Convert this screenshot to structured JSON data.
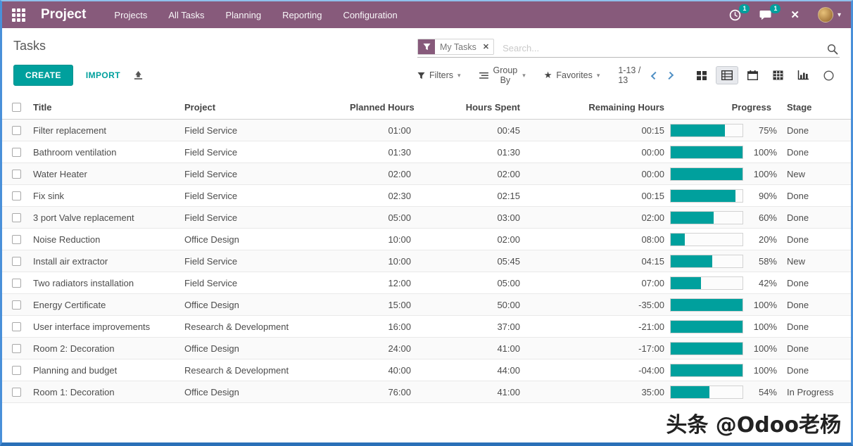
{
  "navbar": {
    "app_name": "Project",
    "menu_items": [
      "Projects",
      "All Tasks",
      "Planning",
      "Reporting",
      "Configuration"
    ],
    "activity_badge": "1",
    "message_badge": "1"
  },
  "control_panel": {
    "title": "Tasks",
    "create_label": "CREATE",
    "import_label": "IMPORT",
    "search": {
      "facet_label": "My Tasks",
      "facet_remove": "✕",
      "placeholder": "Search..."
    },
    "filters_label": "Filters",
    "group_by_label": "Group By",
    "favorites_label": "Favorites",
    "pager_text": "1-13 / 13",
    "view_switcher": [
      "kanban",
      "list",
      "calendar",
      "pivot",
      "graph",
      "activity"
    ],
    "active_view": "list"
  },
  "table": {
    "columns": {
      "title": "Title",
      "project": "Project",
      "planned": "Planned Hours",
      "spent": "Hours Spent",
      "remaining": "Remaining Hours",
      "progress": "Progress",
      "stage": "Stage"
    },
    "sort_column": "planned",
    "rows": [
      {
        "title": "Filter replacement",
        "project": "Field Service",
        "planned": "01:00",
        "spent": "00:45",
        "remaining": "00:15",
        "progress": 75,
        "progress_label": "75%",
        "stage": "Done"
      },
      {
        "title": "Bathroom ventilation",
        "project": "Field Service",
        "planned": "01:30",
        "spent": "01:30",
        "remaining": "00:00",
        "progress": 100,
        "progress_label": "100%",
        "stage": "Done"
      },
      {
        "title": "Water Heater",
        "project": "Field Service",
        "planned": "02:00",
        "spent": "02:00",
        "remaining": "00:00",
        "progress": 100,
        "progress_label": "100%",
        "stage": "New"
      },
      {
        "title": "Fix sink",
        "project": "Field Service",
        "planned": "02:30",
        "spent": "02:15",
        "remaining": "00:15",
        "progress": 90,
        "progress_label": "90%",
        "stage": "Done"
      },
      {
        "title": "3 port Valve replacement",
        "project": "Field Service",
        "planned": "05:00",
        "spent": "03:00",
        "remaining": "02:00",
        "progress": 60,
        "progress_label": "60%",
        "stage": "Done"
      },
      {
        "title": "Noise Reduction",
        "project": "Office Design",
        "planned": "10:00",
        "spent": "02:00",
        "remaining": "08:00",
        "progress": 20,
        "progress_label": "20%",
        "stage": "Done"
      },
      {
        "title": "Install air extractor",
        "project": "Field Service",
        "planned": "10:00",
        "spent": "05:45",
        "remaining": "04:15",
        "progress": 58,
        "progress_label": "58%",
        "stage": "New"
      },
      {
        "title": "Two radiators installation",
        "project": "Field Service",
        "planned": "12:00",
        "spent": "05:00",
        "remaining": "07:00",
        "progress": 42,
        "progress_label": "42%",
        "stage": "Done"
      },
      {
        "title": "Energy Certificate",
        "project": "Office Design",
        "planned": "15:00",
        "spent": "50:00",
        "remaining": "-35:00",
        "progress": 100,
        "progress_label": "100%",
        "stage": "Done"
      },
      {
        "title": "User interface improvements",
        "project": "Research & Development",
        "planned": "16:00",
        "spent": "37:00",
        "remaining": "-21:00",
        "progress": 100,
        "progress_label": "100%",
        "stage": "Done"
      },
      {
        "title": "Room 2: Decoration",
        "project": "Office Design",
        "planned": "24:00",
        "spent": "41:00",
        "remaining": "-17:00",
        "progress": 100,
        "progress_label": "100%",
        "stage": "Done"
      },
      {
        "title": "Planning and budget",
        "project": "Research & Development",
        "planned": "40:00",
        "spent": "44:00",
        "remaining": "-04:00",
        "progress": 100,
        "progress_label": "100%",
        "stage": "Done"
      },
      {
        "title": "Room 1: Decoration",
        "project": "Office Design",
        "planned": "76:00",
        "spent": "41:00",
        "remaining": "35:00",
        "progress": 54,
        "progress_label": "54%",
        "stage": "In Progress"
      }
    ]
  },
  "watermark": "头条 @Odoo老杨",
  "colors": {
    "navbar_bg": "#875A7B",
    "accent_teal": "#00A09D",
    "badge_teal": "#00A09D",
    "frame_blue": "#4A90D9",
    "pager_chevron_blue": "#4F8FC4"
  }
}
